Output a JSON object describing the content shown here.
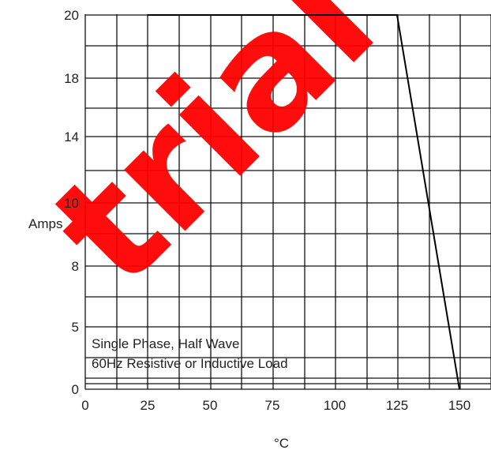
{
  "chart_data": {
    "type": "line",
    "x_ticks": [
      "0",
      "25",
      "50",
      "75",
      "100",
      "125",
      "150"
    ],
    "y_ticks": [
      "0",
      "5",
      "8",
      "10",
      "14",
      "18",
      "20"
    ],
    "xlabel": "°C",
    "ylabel": "Amps",
    "series": [
      {
        "x": [
          25,
          125,
          150
        ],
        "y": [
          20,
          20,
          0
        ]
      }
    ],
    "annotation_lines": [
      "Single Phase, Half Wave",
      "60Hz Resistive or Inductive Load"
    ],
    "grid": true
  },
  "watermark": {
    "text": "trial",
    "color": "#ff0000"
  }
}
